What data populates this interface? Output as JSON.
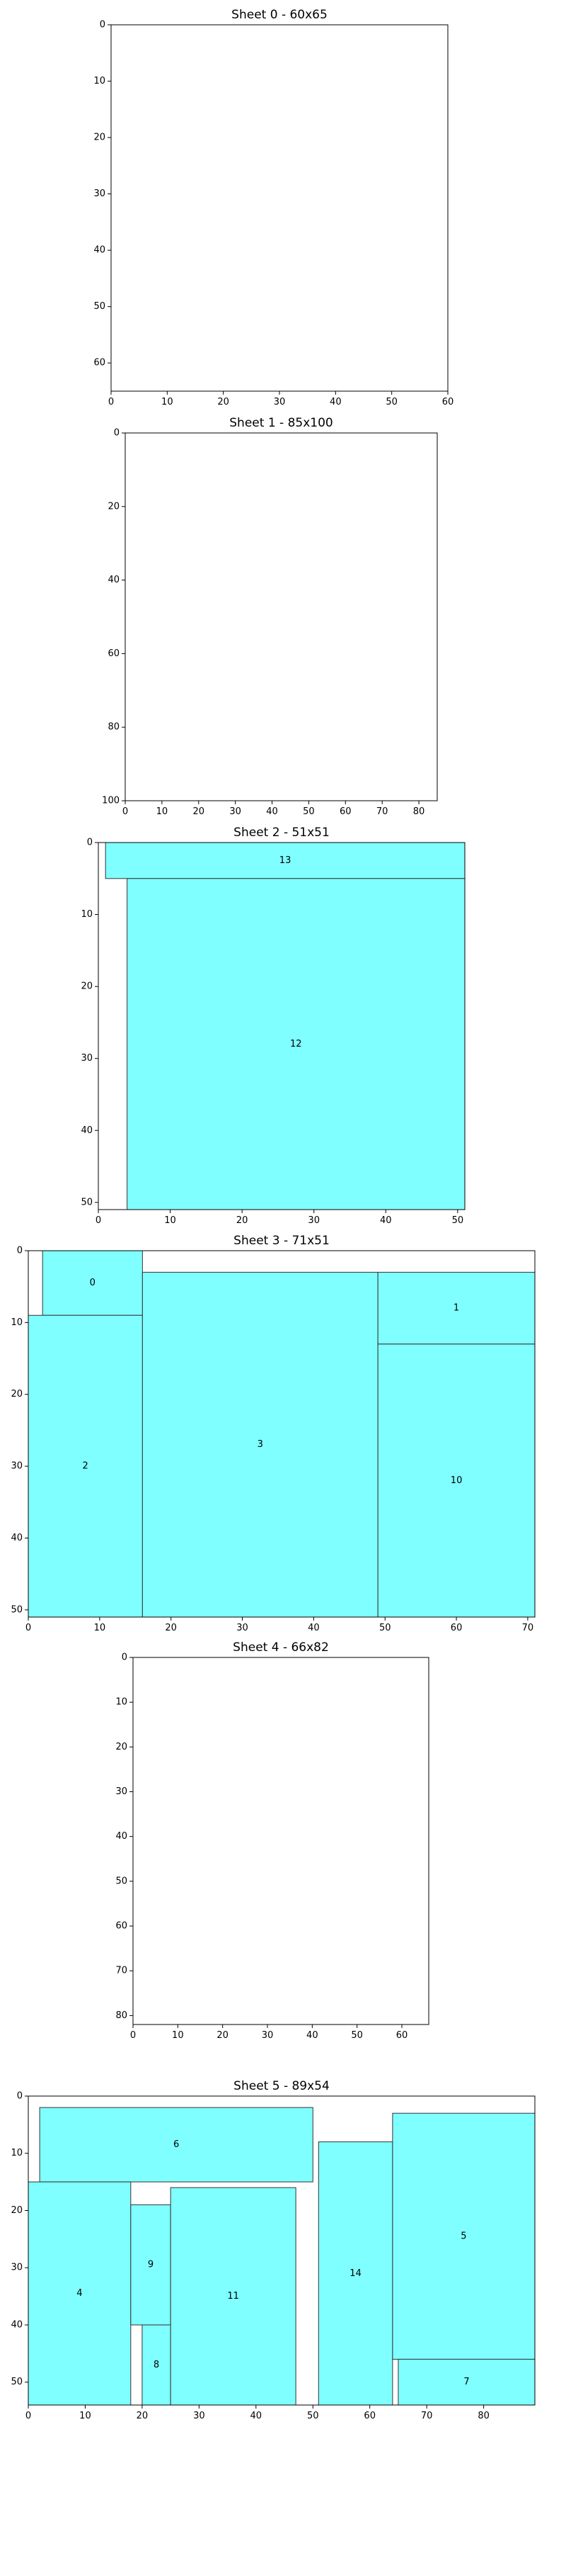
{
  "colors": {
    "piece_fill": "#7fffff",
    "piece_stroke": "#333333",
    "axes_stroke": "#000000",
    "background": "#ffffff"
  },
  "chart_data": [
    {
      "type": "rectangle-packing",
      "title": "Sheet 0 - 60x65",
      "sheet_width": 60,
      "sheet_height": 65,
      "xlim": [
        0,
        60
      ],
      "ylim": [
        65,
        0
      ],
      "xticks": [
        0,
        10,
        20,
        30,
        40,
        50,
        60
      ],
      "yticks": [
        0,
        10,
        20,
        30,
        40,
        50,
        60
      ],
      "rects": []
    },
    {
      "type": "rectangle-packing",
      "title": "Sheet 1 - 85x100",
      "sheet_width": 85,
      "sheet_height": 100,
      "xlim": [
        0,
        85
      ],
      "ylim": [
        100,
        0
      ],
      "xticks": [
        0,
        10,
        20,
        30,
        40,
        50,
        60,
        70,
        80
      ],
      "yticks": [
        0,
        20,
        40,
        60,
        80,
        100
      ],
      "rects": []
    },
    {
      "type": "rectangle-packing",
      "title": "Sheet 2 - 51x51",
      "sheet_width": 51,
      "sheet_height": 51,
      "xlim": [
        0,
        51
      ],
      "ylim": [
        51,
        0
      ],
      "xticks": [
        0,
        10,
        20,
        30,
        40,
        50
      ],
      "yticks": [
        0,
        10,
        20,
        30,
        40,
        50
      ],
      "rects": [
        {
          "label": "13",
          "x0": 1,
          "y0": 0,
          "x1": 51,
          "y1": 5
        },
        {
          "label": "12",
          "x0": 4,
          "y0": 5,
          "x1": 51,
          "y1": 51
        }
      ]
    },
    {
      "type": "rectangle-packing",
      "title": "Sheet 3 - 71x51",
      "sheet_width": 71,
      "sheet_height": 51,
      "xlim": [
        0,
        71
      ],
      "ylim": [
        51,
        0
      ],
      "xticks": [
        0,
        10,
        20,
        30,
        40,
        50,
        60,
        70
      ],
      "yticks": [
        0,
        10,
        20,
        30,
        40,
        50
      ],
      "rects": [
        {
          "label": "0",
          "x0": 2,
          "y0": 0,
          "x1": 16,
          "y1": 9
        },
        {
          "label": "2",
          "x0": 0,
          "y0": 9,
          "x1": 16,
          "y1": 51
        },
        {
          "label": "3",
          "x0": 16,
          "y0": 3,
          "x1": 49,
          "y1": 51
        },
        {
          "label": "1",
          "x0": 49,
          "y0": 3,
          "x1": 71,
          "y1": 13
        },
        {
          "label": "10",
          "x0": 49,
          "y0": 13,
          "x1": 71,
          "y1": 51
        }
      ]
    },
    {
      "type": "rectangle-packing",
      "title": "Sheet 4 - 66x82",
      "sheet_width": 66,
      "sheet_height": 82,
      "xlim": [
        0,
        66
      ],
      "ylim": [
        82,
        0
      ],
      "xticks": [
        0,
        10,
        20,
        30,
        40,
        50,
        60
      ],
      "yticks": [
        0,
        10,
        20,
        30,
        40,
        50,
        60,
        70,
        80
      ],
      "rects": []
    },
    {
      "type": "rectangle-packing",
      "title": "Sheet 5 - 89x54",
      "sheet_width": 89,
      "sheet_height": 54,
      "xlim": [
        0,
        89
      ],
      "ylim": [
        54,
        0
      ],
      "xticks": [
        0,
        10,
        20,
        30,
        40,
        50,
        60,
        70,
        80
      ],
      "yticks": [
        0,
        10,
        20,
        30,
        40,
        50
      ],
      "rects": [
        {
          "label": "6",
          "x0": 2,
          "y0": 2,
          "x1": 50,
          "y1": 15
        },
        {
          "label": "4",
          "x0": 0,
          "y0": 15,
          "x1": 18,
          "y1": 54
        },
        {
          "label": "9",
          "x0": 18,
          "y0": 19,
          "x1": 25,
          "y1": 40
        },
        {
          "label": "8",
          "x0": 20,
          "y0": 40,
          "x1": 25,
          "y1": 54
        },
        {
          "label": "11",
          "x0": 25,
          "y0": 16,
          "x1": 47,
          "y1": 54
        },
        {
          "label": "14",
          "x0": 51,
          "y0": 8,
          "x1": 64,
          "y1": 54
        },
        {
          "label": "5",
          "x0": 64,
          "y0": 3,
          "x1": 89,
          "y1": 46
        },
        {
          "label": "7",
          "x0": 65,
          "y0": 46,
          "x1": 89,
          "y1": 54
        }
      ]
    }
  ]
}
